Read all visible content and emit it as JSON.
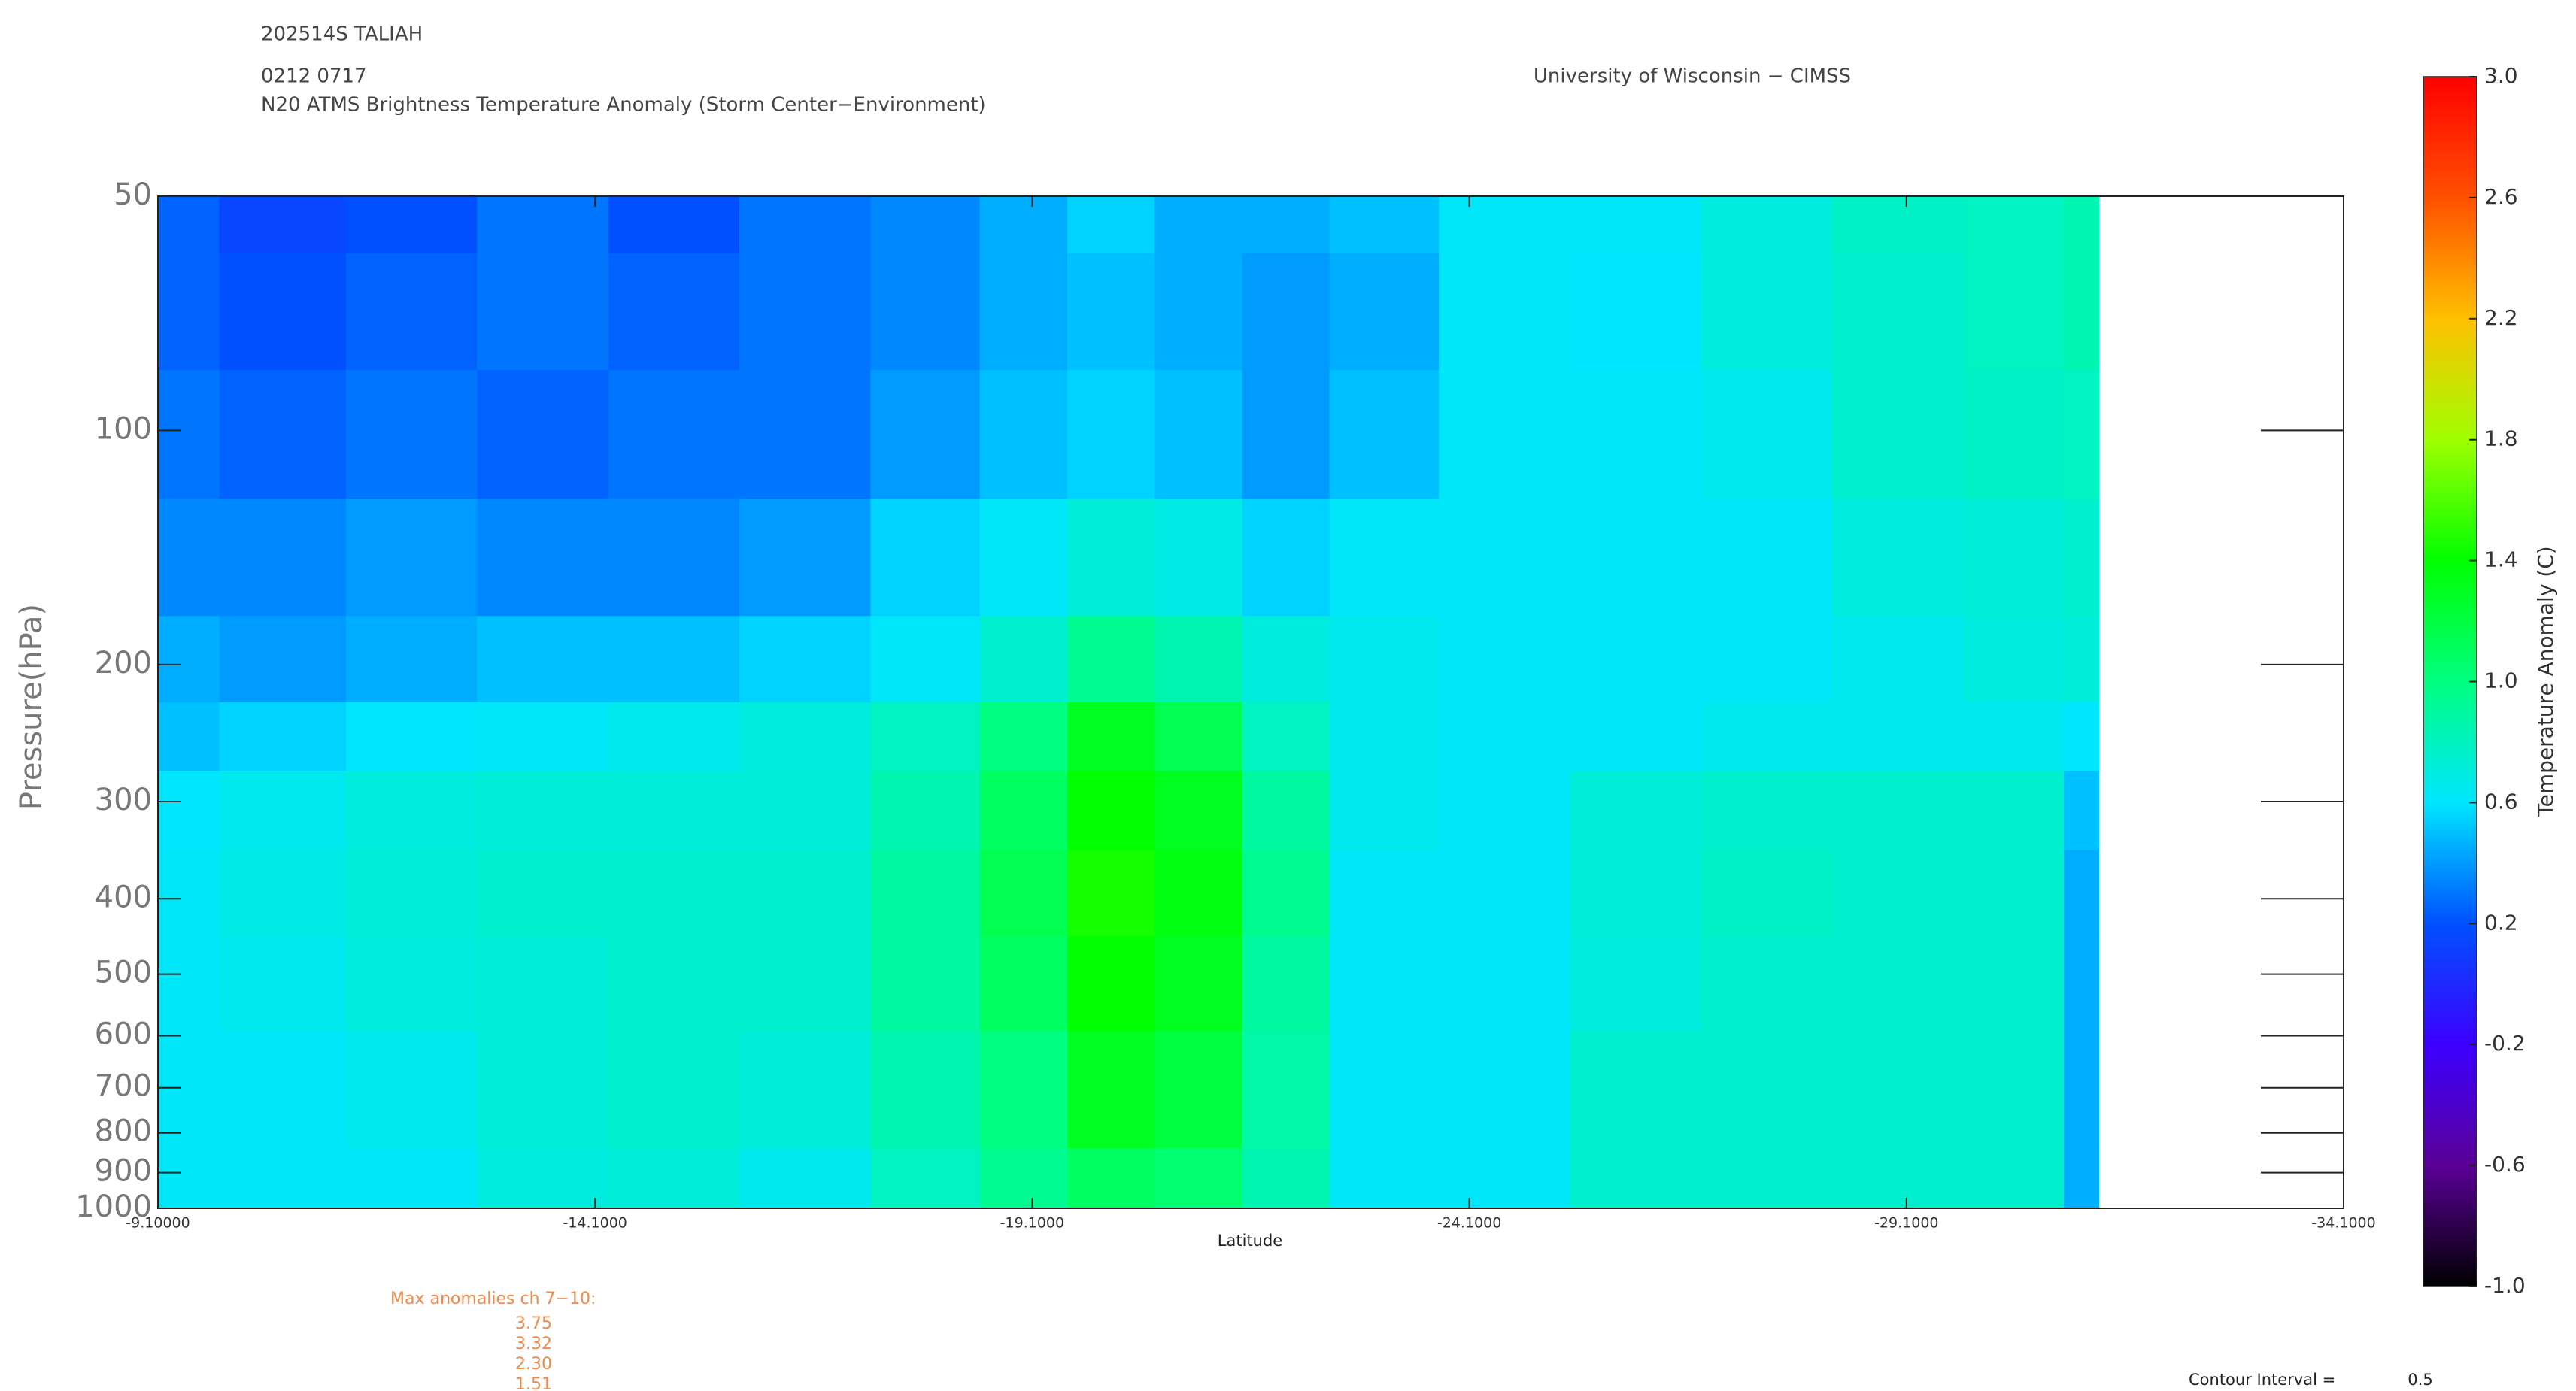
{
  "chart_data": {
    "type": "heatmap",
    "storm": "202514S TALIAH",
    "time": "0212 0717",
    "title": "N20 ATMS Brightness Temperature Anomaly (Storm Center−Environment)",
    "source": "University of Wisconsin − CIMSS",
    "x_label": "Latitude",
    "y_label": "Pressure(hPa)",
    "colorbar_label": "Temperature Anomaly (C)",
    "x": [
      -9.1,
      -10.5,
      -12,
      -13.5,
      -15,
      -16.5,
      -18,
      -19,
      -20,
      -21,
      -22,
      -23,
      -24.5,
      -26,
      -27.5,
      -29,
      -30.5,
      -31.3
    ],
    "y": [
      50,
      70,
      100,
      150,
      200,
      250,
      300,
      400,
      500,
      700,
      1000
    ],
    "z": [
      [
        0.25,
        0.15,
        0.2,
        0.3,
        0.2,
        0.3,
        0.35,
        0.45,
        0.55,
        0.45,
        0.45,
        0.5,
        0.62,
        0.62,
        0.7,
        0.78,
        0.8,
        0.85
      ],
      [
        0.25,
        0.2,
        0.25,
        0.3,
        0.25,
        0.3,
        0.35,
        0.45,
        0.5,
        0.45,
        0.4,
        0.45,
        0.62,
        0.6,
        0.7,
        0.75,
        0.8,
        0.85
      ],
      [
        0.3,
        0.25,
        0.3,
        0.25,
        0.3,
        0.3,
        0.4,
        0.5,
        0.55,
        0.5,
        0.4,
        0.5,
        0.62,
        0.62,
        0.65,
        0.75,
        0.78,
        0.8
      ],
      [
        0.35,
        0.35,
        0.4,
        0.35,
        0.35,
        0.4,
        0.55,
        0.62,
        0.72,
        0.68,
        0.55,
        0.62,
        0.62,
        0.62,
        0.62,
        0.7,
        0.72,
        0.75
      ],
      [
        0.45,
        0.4,
        0.45,
        0.5,
        0.5,
        0.55,
        0.62,
        0.75,
        0.95,
        0.85,
        0.7,
        0.65,
        0.62,
        0.62,
        0.62,
        0.65,
        0.7,
        0.72
      ],
      [
        0.5,
        0.55,
        0.6,
        0.62,
        0.65,
        0.7,
        0.8,
        1.0,
        1.3,
        1.15,
        0.8,
        0.65,
        0.62,
        0.62,
        0.65,
        0.65,
        0.65,
        0.6
      ],
      [
        0.6,
        0.65,
        0.7,
        0.72,
        0.72,
        0.72,
        0.85,
        1.1,
        1.4,
        1.3,
        0.9,
        0.65,
        0.62,
        0.72,
        0.75,
        0.75,
        0.75,
        0.5
      ],
      [
        0.62,
        0.68,
        0.72,
        0.75,
        0.75,
        0.75,
        0.9,
        1.15,
        1.45,
        1.35,
        0.95,
        0.62,
        0.62,
        0.72,
        0.78,
        0.75,
        0.75,
        0.45
      ],
      [
        0.62,
        0.65,
        0.7,
        0.72,
        0.75,
        0.75,
        0.9,
        1.1,
        1.4,
        1.3,
        0.9,
        0.62,
        0.62,
        0.7,
        0.75,
        0.75,
        0.75,
        0.45
      ],
      [
        0.62,
        0.62,
        0.65,
        0.72,
        0.75,
        0.72,
        0.85,
        1.0,
        1.3,
        1.2,
        0.88,
        0.62,
        0.62,
        0.75,
        0.75,
        0.75,
        0.75,
        0.45
      ],
      [
        0.62,
        0.62,
        0.62,
        0.7,
        0.72,
        0.65,
        0.8,
        0.95,
        1.1,
        1.05,
        0.85,
        0.62,
        0.62,
        0.75,
        0.75,
        0.75,
        0.75,
        0.45
      ]
    ],
    "xlim": [
      -9.1,
      -34.1
    ],
    "xticks": [
      {
        "value": -9.1,
        "label": "-9.10000"
      },
      {
        "value": -14.1,
        "label": "-14.1000"
      },
      {
        "value": -19.1,
        "label": "-19.1000"
      },
      {
        "value": -24.1,
        "label": "-24.1000"
      },
      {
        "value": -29.1,
        "label": "-29.1000"
      },
      {
        "value": -34.1,
        "label": "-34.1000"
      }
    ],
    "ylim": [
      1000,
      50
    ],
    "yticks": [
      50,
      100,
      200,
      300,
      400,
      500,
      600,
      700,
      800,
      900,
      1000
    ],
    "ylog": true,
    "clim": [
      -1,
      3
    ],
    "cticks": [
      {
        "value": -1,
        "label": "-1.0"
      },
      -0.6,
      -0.2,
      0.2,
      0.6,
      {
        "value": 1,
        "label": "1.0"
      },
      1.4,
      1.8,
      2.2,
      2.6,
      {
        "value": 3,
        "label": "3.0"
      }
    ],
    "colormap": [
      "#000000",
      "#5a0096",
      "#3c00ff",
      "#0050ff",
      "#00e6ff",
      "#00ff80",
      "#00ff00",
      "#a0ff00",
      "#ffc000",
      "#ff5000",
      "#ff0000"
    ],
    "max_anomalies": {
      "title": "Max anomalies ch 7−10:",
      "values": [
        "3.75",
        "3.32",
        "2.30",
        "1.51"
      ]
    },
    "contour_interval": {
      "label": "Contour Interval =",
      "value": "0.5"
    }
  }
}
